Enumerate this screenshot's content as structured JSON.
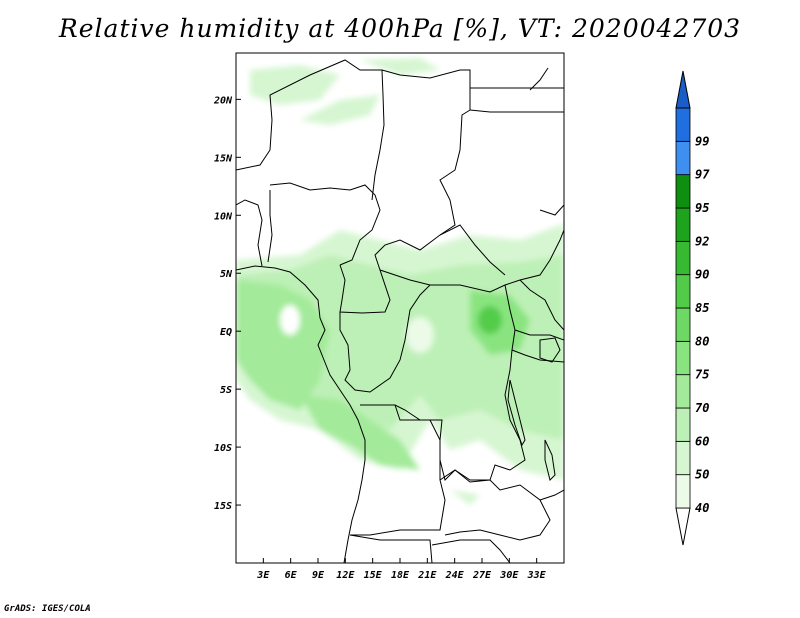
{
  "title": "Relative humidity at 400hPa [%], VT: 2020042703",
  "credit": "GrADS: IGES/COLA",
  "map": {
    "lon_range": [
      0,
      36
    ],
    "lat_range": [
      -20,
      24
    ],
    "variable": "Relative humidity",
    "units": "%",
    "level": "400hPa",
    "valid_time": "2020042703",
    "lon_ticks": [
      {
        "value": 3,
        "label": "3E"
      },
      {
        "value": 6,
        "label": "6E"
      },
      {
        "value": 9,
        "label": "9E"
      },
      {
        "value": 12,
        "label": "12E"
      },
      {
        "value": 15,
        "label": "15E"
      },
      {
        "value": 18,
        "label": "18E"
      },
      {
        "value": 21,
        "label": "21E"
      },
      {
        "value": 24,
        "label": "24E"
      },
      {
        "value": 27,
        "label": "27E"
      },
      {
        "value": 30,
        "label": "30E"
      },
      {
        "value": 33,
        "label": "33E"
      }
    ],
    "lat_ticks": [
      {
        "value": 20,
        "label": "20N"
      },
      {
        "value": 15,
        "label": "15N"
      },
      {
        "value": 10,
        "label": "10N"
      },
      {
        "value": 5,
        "label": "5N"
      },
      {
        "value": 0,
        "label": "EQ"
      },
      {
        "value": -5,
        "label": "5S"
      },
      {
        "value": -10,
        "label": "10S"
      },
      {
        "value": -15,
        "label": "15S"
      }
    ]
  },
  "colorbar": {
    "levels": [
      {
        "label": "40",
        "color": "#ebfbe8"
      },
      {
        "label": "50",
        "color": "#d6f6d1"
      },
      {
        "label": "60",
        "color": "#bdf0b6"
      },
      {
        "label": "70",
        "color": "#a3ea9a"
      },
      {
        "label": "75",
        "color": "#89e47f"
      },
      {
        "label": "80",
        "color": "#6dd863"
      },
      {
        "label": "85",
        "color": "#52cc48"
      },
      {
        "label": "90",
        "color": "#37ba31"
      },
      {
        "label": "92",
        "color": "#1ea31c"
      },
      {
        "label": "95",
        "color": "#0f8f10"
      },
      {
        "label": "97",
        "color": "#3f8ff0"
      },
      {
        "label": "99",
        "color": "#1f6fe0"
      }
    ],
    "below_color": "#ffffff",
    "above_color": "#1a5cc8"
  }
}
